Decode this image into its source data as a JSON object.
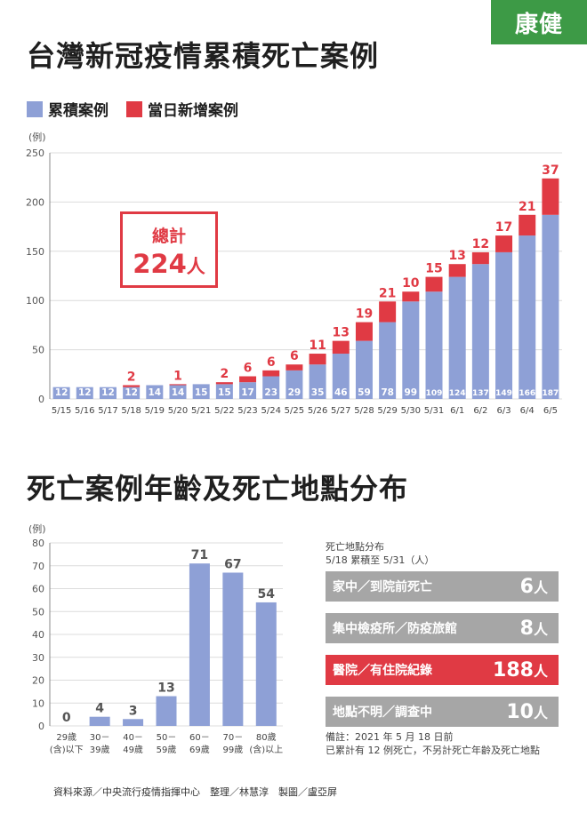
{
  "logo": "康健",
  "title1": "台灣新冠疫情累積死亡案例",
  "legend": [
    {
      "label": "累積案例",
      "color": "#8ea0d6"
    },
    {
      "label": "當日新增案例",
      "color": "#e03a44"
    }
  ],
  "total": {
    "label": "總計",
    "value": "224",
    "unit": "人"
  },
  "title2": "死亡案例年齡及死亡地點分布",
  "location": {
    "heading_line1": "死亡地點分布",
    "heading_line2": "5/18 累積至 5/31（人）",
    "items": [
      {
        "name": "家中／到院前死亡",
        "value": "6",
        "unit": "人",
        "highlight": false
      },
      {
        "name": "集中檢疫所／防疫旅館",
        "value": "8",
        "unit": "人",
        "highlight": false
      },
      {
        "name": "醫院／有住院紀錄",
        "value": "188",
        "unit": "人",
        "highlight": true
      },
      {
        "name": "地點不明／調查中",
        "value": "10",
        "unit": "人",
        "highlight": false
      }
    ],
    "note_line1": "備註：2021 年 5 月 18 日前",
    "note_line2": "已累計有 12 例死亡，不另計死亡年齡及死亡地點"
  },
  "source": "資料來源／中央流行疫情指揮中心　整理／林慧淳　製圖／盧亞屏",
  "chart_data": [
    {
      "type": "bar",
      "stacked": true,
      "ylabel": "(例)",
      "ylim": [
        0,
        250
      ],
      "yticks": [
        0,
        50,
        100,
        150,
        200,
        250
      ],
      "grid": true,
      "categories": [
        "5/15",
        "5/16",
        "5/17",
        "5/18",
        "5/19",
        "5/20",
        "5/21",
        "5/22",
        "5/23",
        "5/24",
        "5/25",
        "5/26",
        "5/27",
        "5/28",
        "5/29",
        "5/30",
        "5/31",
        "6/1",
        "6/2",
        "6/3",
        "6/4",
        "6/5"
      ],
      "series": [
        {
          "name": "累積案例",
          "color": "#8ea0d6",
          "values": [
            12,
            12,
            12,
            12,
            14,
            14,
            15,
            15,
            17,
            23,
            29,
            35,
            46,
            59,
            78,
            99,
            109,
            124,
            137,
            149,
            166,
            187
          ]
        },
        {
          "name": "當日新增案例",
          "color": "#e03a44",
          "values": [
            0,
            0,
            0,
            2,
            0,
            1,
            0,
            2,
            6,
            6,
            6,
            11,
            13,
            19,
            21,
            10,
            15,
            13,
            12,
            17,
            21,
            37
          ]
        }
      ]
    },
    {
      "type": "bar",
      "ylabel": "(例)",
      "ylim": [
        0,
        80
      ],
      "yticks": [
        0,
        10,
        20,
        30,
        40,
        50,
        60,
        70,
        80
      ],
      "grid": true,
      "color": "#8ea0d6",
      "categories": [
        [
          "29歲",
          "(含)以下"
        ],
        [
          "30－",
          "39歲"
        ],
        [
          "40－",
          "49歲"
        ],
        [
          "50－",
          "59歲"
        ],
        [
          "60－",
          "69歲"
        ],
        [
          "70－",
          "99歲"
        ],
        [
          "80歲",
          "(含)以上"
        ]
      ],
      "values": [
        0,
        4,
        3,
        13,
        71,
        67,
        54
      ]
    }
  ]
}
